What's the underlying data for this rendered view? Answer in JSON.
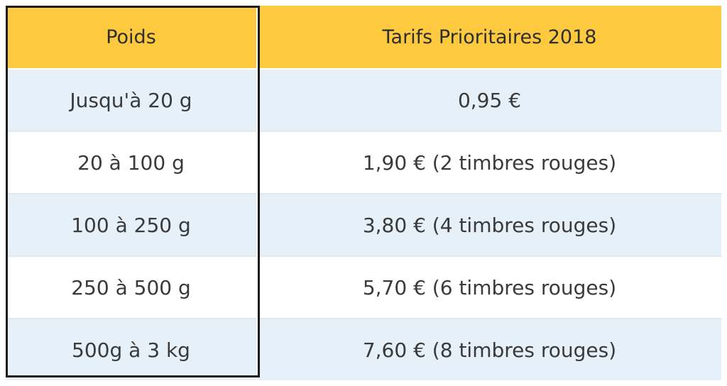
{
  "table": {
    "headers": [
      "Poids",
      "Tarifs Prioritaires 2018"
    ],
    "rows": [
      [
        "Jusqu'à 20 g",
        "0,95 €"
      ],
      [
        "20 à 100 g",
        "1,90 € (2 timbres rouges)"
      ],
      [
        "100 à 250 g",
        "3,80 € (4 timbres rouges)"
      ],
      [
        "250 à 500 g",
        "5,70 € (6 timbres rouges)"
      ],
      [
        "500g à 3 kg",
        "7,60 € (8 timbres rouges)"
      ]
    ]
  },
  "colors": {
    "header_bg": "#fdc93f",
    "row_alt_bg": "#e5f0f8",
    "row_bg": "#ffffff",
    "highlight_border": "#1b1b1b"
  }
}
